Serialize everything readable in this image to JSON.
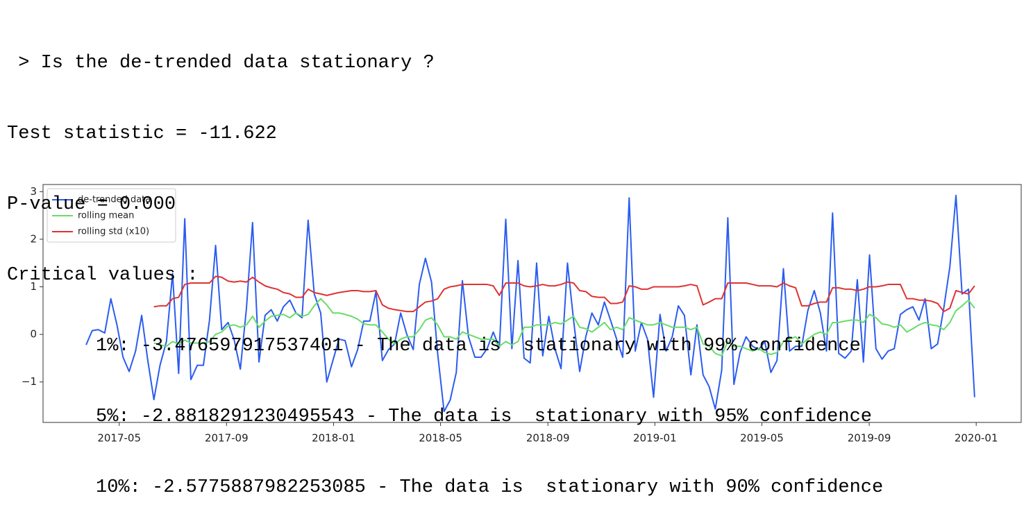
{
  "output": {
    "question": " > Is the de-trended data stationary ?",
    "test_statistic": "Test statistic = -11.622",
    "p_value": "P-value = 0.000",
    "critical_values_header": "Critical values :",
    "critical_values": [
      "1%: -3.476597917537401 - The data is  stationary with 99% confidence",
      "5%: -2.8818291230495543 - The data is  stationary with 95% confidence",
      "10%: -2.5775887982253085 - The data is  stationary with 90% confidence"
    ]
  },
  "chart_data": {
    "type": "line",
    "x": [
      2017.23,
      2017.249,
      2017.268,
      2017.288,
      2017.307,
      2017.326,
      2017.345,
      2017.364,
      2017.384,
      2017.403,
      2017.422,
      2017.441,
      2017.46,
      2017.48,
      2017.499,
      2017.518,
      2017.537,
      2017.556,
      2017.576,
      2017.595,
      2017.614,
      2017.633,
      2017.652,
      2017.672,
      2017.691,
      2017.71,
      2017.729,
      2017.748,
      2017.768,
      2017.787,
      2017.806,
      2017.825,
      2017.844,
      2017.864,
      2017.883,
      2017.902,
      2017.921,
      2017.94,
      2017.96,
      2017.979,
      2017.998,
      2018.017,
      2018.036,
      2018.056,
      2018.075,
      2018.094,
      2018.113,
      2018.132,
      2018.152,
      2018.171,
      2018.19,
      2018.209,
      2018.228,
      2018.248,
      2018.267,
      2018.286,
      2018.305,
      2018.324,
      2018.344,
      2018.363,
      2018.382,
      2018.401,
      2018.42,
      2018.44,
      2018.459,
      2018.478,
      2018.497,
      2018.516,
      2018.536,
      2018.555,
      2018.574,
      2018.593,
      2018.612,
      2018.632,
      2018.651,
      2018.67,
      2018.689,
      2018.708,
      2018.728,
      2018.747,
      2018.766,
      2018.785,
      2018.804,
      2018.824,
      2018.843,
      2018.862,
      2018.881,
      2018.9,
      2018.92,
      2018.939,
      2018.958,
      2018.977,
      2018.996,
      2019.016,
      2019.035,
      2019.054,
      2019.073,
      2019.092,
      2019.112,
      2019.131,
      2019.15,
      2019.169,
      2019.188,
      2019.208,
      2019.227,
      2019.246,
      2019.265,
      2019.284,
      2019.304,
      2019.323,
      2019.342,
      2019.361,
      2019.38,
      2019.4,
      2019.419,
      2019.438,
      2019.457,
      2019.476,
      2019.496,
      2019.515,
      2019.534,
      2019.553,
      2019.572,
      2019.592,
      2019.611,
      2019.63,
      2019.649,
      2019.668,
      2019.688,
      2019.707,
      2019.726,
      2019.745,
      2019.764,
      2019.784,
      2019.803,
      2019.822,
      2019.841,
      2019.86,
      2019.88,
      2019.899,
      2019.918,
      2019.937,
      2019.956,
      2019.976,
      2019.995
    ],
    "series": [
      {
        "name": "de-trended data",
        "color": "#2a5cf0",
        "values": [
          -0.22,
          0.08,
          0.1,
          0.03,
          0.75,
          0.2,
          -0.48,
          -0.78,
          -0.35,
          0.4,
          -0.55,
          -1.37,
          -0.65,
          -0.15,
          1.28,
          -0.82,
          2.43,
          -0.95,
          -0.65,
          -0.65,
          0.3,
          1.87,
          0.1,
          0.25,
          -0.12,
          -0.73,
          0.55,
          2.35,
          -0.58,
          0.4,
          0.52,
          0.28,
          0.58,
          0.72,
          0.45,
          0.35,
          2.4,
          0.85,
          0.45,
          -1.0,
          -0.55,
          -0.1,
          -0.13,
          -0.68,
          -0.32,
          0.28,
          0.28,
          0.9,
          -0.55,
          -0.32,
          -0.2,
          0.45,
          0.0,
          -0.32,
          1.05,
          1.6,
          1.1,
          -0.4,
          -1.62,
          -1.38,
          -0.8,
          1.13,
          -0.05,
          -0.48,
          -0.48,
          -0.3,
          0.05,
          -0.28,
          2.42,
          -0.3,
          1.55,
          -0.5,
          -0.6,
          1.5,
          -0.45,
          0.38,
          -0.3,
          -0.72,
          1.5,
          0.3,
          -0.78,
          -0.05,
          0.45,
          0.2,
          0.68,
          0.3,
          -0.1,
          -0.48,
          2.87,
          -0.35,
          0.25,
          -0.1,
          -1.32,
          0.42,
          -0.35,
          -0.05,
          0.6,
          0.4,
          -0.85,
          0.2,
          -0.85,
          -1.1,
          -1.57,
          -0.75,
          2.45,
          -1.05,
          -0.38,
          -0.05,
          -0.25,
          -0.32,
          -0.15,
          -0.8,
          -0.55,
          1.38,
          -0.35,
          -0.25,
          -0.25,
          0.5,
          0.92,
          0.45,
          -0.35,
          2.55,
          -0.4,
          -0.5,
          -0.35,
          1.15,
          -0.58,
          1.67,
          -0.3,
          -0.52,
          -0.35,
          -0.3,
          0.42,
          0.52,
          0.58,
          0.3,
          0.75,
          -0.3,
          -0.2,
          0.55,
          1.42,
          2.92,
          0.85,
          0.95,
          -1.32
        ]
      },
      {
        "name": "rolling mean",
        "color": "#66dd66",
        "values": [
          null,
          null,
          null,
          null,
          null,
          null,
          null,
          null,
          null,
          null,
          null,
          -0.18,
          -0.22,
          -0.25,
          -0.15,
          -0.2,
          -0.12,
          -0.18,
          -0.18,
          -0.18,
          -0.15,
          0.0,
          0.05,
          0.18,
          0.2,
          0.15,
          0.2,
          0.38,
          0.15,
          0.28,
          0.38,
          0.4,
          0.42,
          0.35,
          0.45,
          0.38,
          0.42,
          0.6,
          0.75,
          0.62,
          0.45,
          0.45,
          0.42,
          0.38,
          0.32,
          0.22,
          0.2,
          0.2,
          0.05,
          -0.1,
          -0.2,
          -0.1,
          -0.05,
          -0.05,
          0.1,
          0.3,
          0.35,
          0.2,
          -0.05,
          -0.05,
          -0.1,
          0.05,
          0.0,
          -0.05,
          -0.1,
          -0.1,
          -0.1,
          -0.25,
          -0.15,
          -0.22,
          -0.15,
          0.15,
          0.15,
          0.2,
          0.2,
          0.2,
          0.25,
          0.22,
          0.3,
          0.38,
          0.15,
          0.12,
          0.05,
          0.15,
          0.25,
          0.1,
          0.15,
          0.1,
          0.35,
          0.3,
          0.25,
          0.2,
          0.2,
          0.25,
          0.2,
          0.15,
          0.15,
          0.15,
          0.1,
          0.15,
          -0.2,
          -0.25,
          -0.4,
          -0.45,
          -0.15,
          -0.25,
          -0.25,
          -0.3,
          -0.35,
          -0.3,
          -0.38,
          -0.42,
          -0.38,
          -0.15,
          -0.1,
          -0.05,
          -0.2,
          -0.1,
          0.0,
          0.05,
          0.0,
          0.25,
          0.25,
          0.28,
          0.3,
          0.3,
          0.25,
          0.42,
          0.35,
          0.22,
          0.2,
          0.15,
          0.2,
          0.05,
          0.12,
          0.2,
          0.25,
          0.2,
          0.18,
          0.1,
          0.25,
          0.5,
          0.6,
          0.72,
          0.55
        ]
      },
      {
        "name": "rolling std (x10)",
        "color": "#dd3333",
        "values": [
          null,
          null,
          null,
          null,
          null,
          null,
          null,
          null,
          null,
          null,
          null,
          0.58,
          0.6,
          0.6,
          0.75,
          0.78,
          1.05,
          1.08,
          1.08,
          1.08,
          1.08,
          1.22,
          1.2,
          1.12,
          1.1,
          1.12,
          1.1,
          1.2,
          1.1,
          1.02,
          0.98,
          0.95,
          0.88,
          0.85,
          0.78,
          0.78,
          0.95,
          0.88,
          0.85,
          0.82,
          0.85,
          0.88,
          0.9,
          0.92,
          0.92,
          0.9,
          0.9,
          0.92,
          0.62,
          0.55,
          0.52,
          0.5,
          0.48,
          0.48,
          0.58,
          0.68,
          0.7,
          0.75,
          0.95,
          1.0,
          1.02,
          1.05,
          1.05,
          1.05,
          1.05,
          1.05,
          1.02,
          0.82,
          1.08,
          1.08,
          1.08,
          1.02,
          1.0,
          1.02,
          1.05,
          1.02,
          1.02,
          1.05,
          1.1,
          1.08,
          0.92,
          0.9,
          0.8,
          0.78,
          0.78,
          0.65,
          0.65,
          0.68,
          1.02,
          1.0,
          0.95,
          0.95,
          1.0,
          1.0,
          1.0,
          1.0,
          1.0,
          1.02,
          1.05,
          1.02,
          0.62,
          0.68,
          0.75,
          0.75,
          1.08,
          1.08,
          1.08,
          1.08,
          1.05,
          1.02,
          1.02,
          1.02,
          1.0,
          1.08,
          1.02,
          0.98,
          0.6,
          0.6,
          0.65,
          0.68,
          0.68,
          0.98,
          0.98,
          0.95,
          0.95,
          0.92,
          0.95,
          1.0,
          1.0,
          1.02,
          1.05,
          1.05,
          1.05,
          0.75,
          0.75,
          0.72,
          0.72,
          0.7,
          0.65,
          0.48,
          0.55,
          0.92,
          0.88,
          0.85,
          1.02
        ]
      }
    ],
    "xlim": [
      2017.096,
      2020.14
    ],
    "xticks": [
      {
        "value": 2017.333,
        "label": "2017-05"
      },
      {
        "value": 2017.667,
        "label": "2017-09"
      },
      {
        "value": 2018.0,
        "label": "2018-01"
      },
      {
        "value": 2018.333,
        "label": "2018-05"
      },
      {
        "value": 2018.667,
        "label": "2018-09"
      },
      {
        "value": 2019.0,
        "label": "2019-01"
      },
      {
        "value": 2019.333,
        "label": "2019-05"
      },
      {
        "value": 2019.667,
        "label": "2019-09"
      },
      {
        "value": 2020.0,
        "label": "2020-01"
      }
    ],
    "ylim": [
      -1.85,
      3.15
    ],
    "yticks": [
      {
        "value": -1,
        "label": "−1"
      },
      0,
      1,
      2,
      3
    ],
    "legend": "upper-left",
    "grid": false
  }
}
